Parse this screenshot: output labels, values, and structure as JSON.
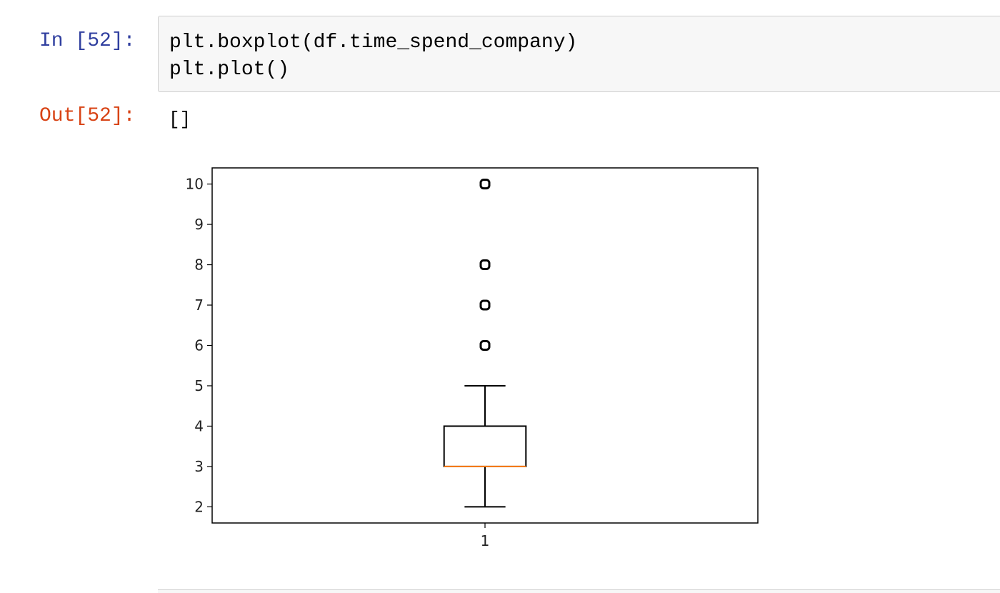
{
  "cell": {
    "input_prompt": "In [52]:",
    "code_lines": [
      "plt.boxplot(df.time_spend_company)",
      "plt.plot()"
    ],
    "output_prompt": "Out[52]:",
    "output_text": "[]"
  },
  "chart_data": {
    "type": "boxplot",
    "categories": [
      "1"
    ],
    "series": [
      {
        "whisker_low": 2,
        "q1": 3,
        "median": 3,
        "q3": 4,
        "whisker_high": 5,
        "outliers": [
          6,
          7,
          8,
          10
        ]
      }
    ],
    "y_ticks": [
      "2",
      "3",
      "4",
      "5",
      "6",
      "7",
      "8",
      "9",
      "10"
    ],
    "ylim": [
      1.6,
      10.4
    ],
    "xlim": [
      0.5,
      1.5
    ],
    "grid": false,
    "colors": {
      "box": "#000000",
      "median": "#ff7f0e",
      "outlier_edge": "#000000"
    }
  }
}
